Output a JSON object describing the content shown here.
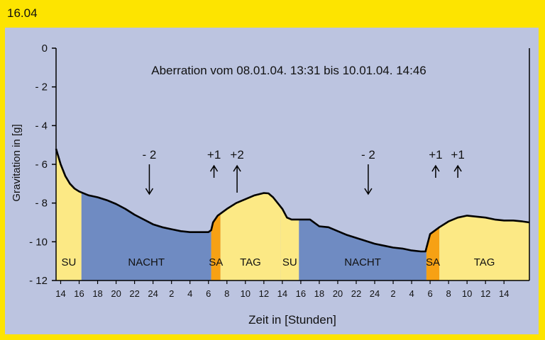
{
  "figure_label": "16.04",
  "chart_data": {
    "type": "area",
    "title": "Aberration vom 08.01.04. 13:31 bis 10.01.04. 14:46",
    "xlabel": "Zeit in [Stunden]",
    "ylabel": "Gravitation in [g]",
    "ylim": [
      -12,
      0
    ],
    "yticks": [
      0,
      -2,
      -4,
      -6,
      -8,
      -10,
      -12
    ],
    "ytick_labels": [
      "0",
      "- 2",
      "- 4",
      "- 6",
      "- 8",
      "- 10",
      "- 12"
    ],
    "xlim": [
      13.5,
      64.75
    ],
    "xticks": [
      14,
      16,
      18,
      20,
      22,
      24,
      26,
      28,
      30,
      32,
      34,
      36,
      38,
      40,
      42,
      44,
      46,
      48,
      50,
      52,
      54,
      56,
      58,
      60,
      62
    ],
    "xtick_labels": [
      "14",
      "16",
      "18",
      "20",
      "22",
      "24",
      "2",
      "4",
      "6",
      "8",
      "10",
      "12",
      "14",
      "16",
      "18",
      "20",
      "22",
      "24",
      "2",
      "4",
      "6",
      "8",
      "10",
      "12",
      "14"
    ],
    "grid": false,
    "series": [
      {
        "x": [
          13.5,
          14.0,
          14.5,
          15.0,
          15.5,
          16.0,
          17.0,
          18.0,
          19.0,
          20.0,
          21.0,
          22.0,
          23.0,
          24.0,
          25.0,
          26.0,
          27.0,
          28.0,
          29.0,
          30.0,
          30.3,
          30.5,
          31.0,
          32.0,
          33.0,
          34.0,
          35.0,
          36.0,
          36.5,
          37.0,
          38.0,
          38.5,
          39.0,
          40.0,
          41.0,
          42.0,
          43.0,
          44.0,
          45.0,
          46.0,
          47.0,
          48.0,
          49.0,
          50.0,
          51.0,
          52.0,
          53.0,
          53.5,
          54.0,
          55.0,
          56.0,
          57.0,
          58.0,
          59.0,
          60.0,
          61.0,
          62.0,
          63.0,
          64.0,
          64.75
        ],
        "values": [
          -5.2,
          -6.0,
          -6.6,
          -7.0,
          -7.25,
          -7.4,
          -7.6,
          -7.7,
          -7.85,
          -8.05,
          -8.3,
          -8.6,
          -8.85,
          -9.1,
          -9.25,
          -9.35,
          -9.45,
          -9.5,
          -9.5,
          -9.5,
          -9.4,
          -9.0,
          -8.65,
          -8.3,
          -8.0,
          -7.8,
          -7.6,
          -7.48,
          -7.5,
          -7.7,
          -8.3,
          -8.75,
          -8.85,
          -8.85,
          -8.85,
          -9.2,
          -9.25,
          -9.45,
          -9.65,
          -9.8,
          -9.95,
          -10.1,
          -10.2,
          -10.3,
          -10.35,
          -10.45,
          -10.5,
          -10.5,
          -9.6,
          -9.25,
          -8.95,
          -8.75,
          -8.65,
          -8.7,
          -8.75,
          -8.85,
          -8.9,
          -8.9,
          -8.95,
          -9.0
        ]
      }
    ],
    "phases": [
      {
        "label": "SU",
        "start": 13.5,
        "end": 16.25,
        "color": "#fce985"
      },
      {
        "label": "NACHT",
        "start": 16.25,
        "end": 30.3,
        "color": "#6f8bc2"
      },
      {
        "label": "SA",
        "start": 30.3,
        "end": 31.3,
        "color": "#f7a114"
      },
      {
        "label": "TAG",
        "start": 31.3,
        "end": 37.8,
        "color": "#fce985"
      },
      {
        "label": "SU",
        "start": 37.8,
        "end": 39.8,
        "color": "#fce985"
      },
      {
        "label": "NACHT",
        "start": 39.8,
        "end": 53.6,
        "color": "#6f8bc2"
      },
      {
        "label": "SA",
        "start": 53.6,
        "end": 55.0,
        "color": "#f7a114"
      },
      {
        "label": "TAG",
        "start": 55.0,
        "end": 64.75,
        "color": "#fce985"
      }
    ],
    "annotations": [
      {
        "text": "- 2",
        "x": 23.6,
        "direction": "down"
      },
      {
        "text": "+1",
        "x": 30.6,
        "direction": "up"
      },
      {
        "text": "+2",
        "x": 33.1,
        "direction": "up"
      },
      {
        "text": "- 2",
        "x": 47.3,
        "direction": "down"
      },
      {
        "text": "+1",
        "x": 54.6,
        "direction": "up"
      },
      {
        "text": "+1",
        "x": 57.0,
        "direction": "up"
      }
    ]
  }
}
